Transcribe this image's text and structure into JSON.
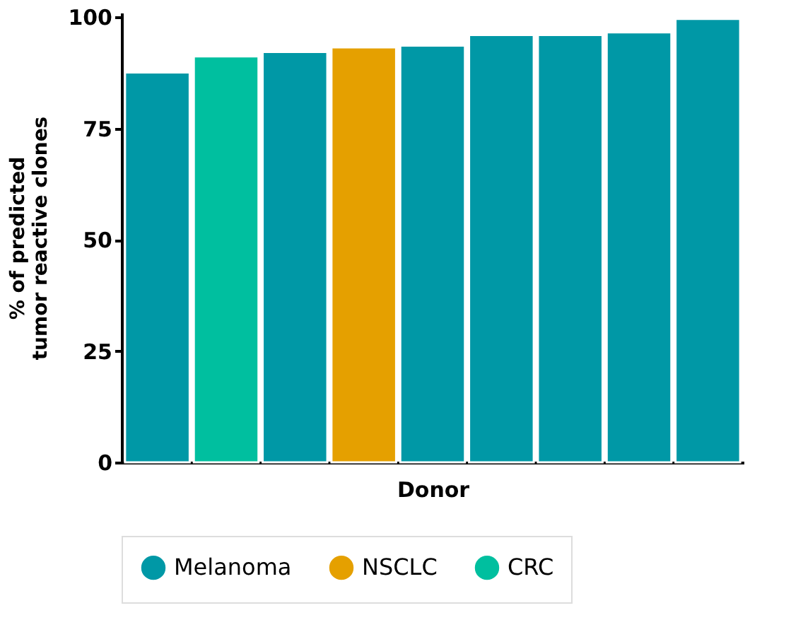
{
  "chart_data": {
    "type": "bar",
    "xlabel": "Donor",
    "ylabel": "% of predicted tumor reactive clones",
    "categories": [
      null,
      null,
      null,
      null,
      null,
      null,
      null,
      null,
      null
    ],
    "series": [
      {
        "name": "Melanoma",
        "color": "#0098a6",
        "values": [
          87.6,
          null,
          92.2,
          null,
          93.6,
          96.0,
          96.0,
          96.6,
          99.6
        ]
      },
      {
        "name": "NSCLC",
        "color": "#e5a000",
        "values": [
          null,
          null,
          null,
          93.2,
          null,
          null,
          null,
          null,
          null
        ]
      },
      {
        "name": "CRC",
        "color": "#00bf9f",
        "values": [
          null,
          91.2,
          null,
          null,
          null,
          null,
          null,
          null,
          null
        ]
      }
    ],
    "ylim": [
      0,
      101
    ],
    "yticks": [
      0,
      25,
      50,
      75,
      100
    ],
    "grid": false,
    "legend": "bottom",
    "tick_labels": "y"
  }
}
